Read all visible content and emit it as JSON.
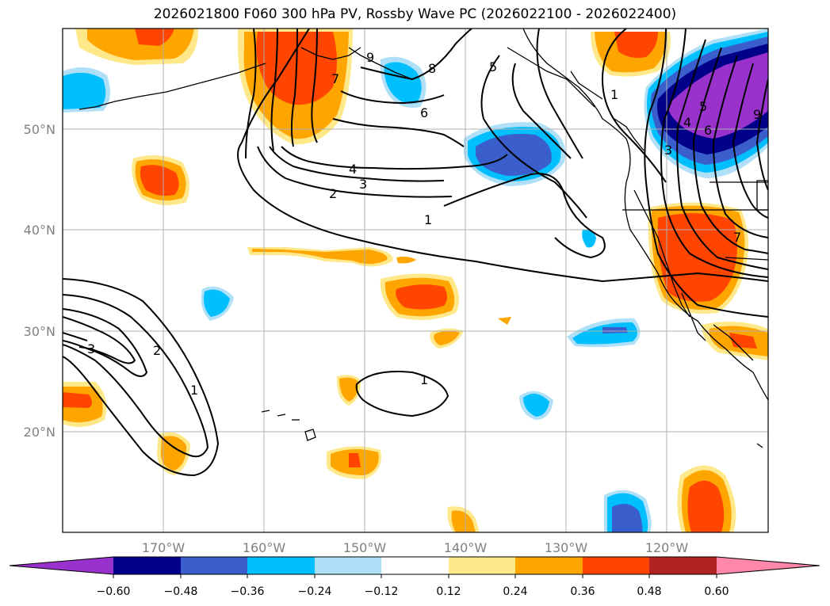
{
  "title": "2026021800 F060 300 hPa PV, Rossby Wave PC (2026022100 - 2026022400)",
  "lat_labels": [
    "50°N",
    "40°N",
    "30°N",
    "20°N"
  ],
  "lon_labels": [
    "170°W",
    "160°W",
    "150°W",
    "140°W",
    "130°W",
    "120°W"
  ],
  "colorbar": {
    "ticks": [
      "−0.60",
      "−0.48",
      "−0.36",
      "−0.24",
      "−0.12",
      "0.12",
      "0.24",
      "0.36",
      "0.48",
      "0.60"
    ],
    "colors": [
      "#9932cc",
      "#00008b",
      "#3a5fcd",
      "#00bfff",
      "#b0e0f8",
      "#ffffff",
      "#ffe88a",
      "#ffa500",
      "#ff4500",
      "#b22222",
      "#ff88aa"
    ]
  },
  "contour_labels": [
    "1",
    "2",
    "3",
    "4",
    "5",
    "6",
    "7",
    "8",
    "9",
    "1",
    "2",
    "3",
    "1",
    "3",
    "4",
    "5",
    "6",
    "7",
    "1",
    "9"
  ]
}
